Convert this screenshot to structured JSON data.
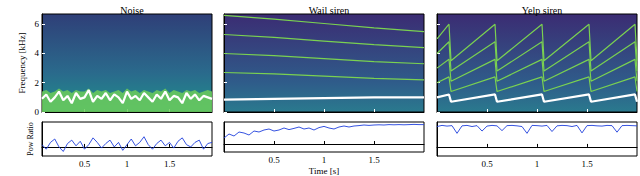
{
  "chart_data": [
    {
      "type": "line",
      "title": "Noise",
      "ylabel": "Frequency [kHz]",
      "tick_labels": "y",
      "grid": false,
      "xlim": [
        0,
        2
      ],
      "xticks": [
        0.5,
        1,
        1.5
      ],
      "ylim": [
        0,
        6.7
      ],
      "yticks": [
        0,
        2,
        4,
        6
      ],
      "x": [
        0,
        0.05,
        0.1,
        0.15,
        0.2,
        0.25,
        0.3,
        0.35,
        0.4,
        0.45,
        0.5,
        0.55,
        0.6,
        0.65,
        0.7,
        0.75,
        0.8,
        0.85,
        0.9,
        0.95,
        1,
        1.05,
        1.1,
        1.15,
        1.2,
        1.25,
        1.3,
        1.35,
        1.4,
        1.45,
        1.5,
        1.55,
        1.6,
        1.65,
        1.7,
        1.75,
        1.8,
        1.85,
        1.9,
        1.95,
        2
      ],
      "series": [
        {
          "type": "area",
          "color": "#6ccd5a",
          "values": [
            1.4,
            1.5,
            1.3,
            1.4,
            1.6,
            1.4,
            1.5,
            1.3,
            1.5,
            1.4,
            1.4,
            1.6,
            1.3,
            1.5,
            1.4,
            1.5,
            1.3,
            1.4,
            1.5,
            1.3,
            1.6,
            1.4,
            1.5,
            1.3,
            1.5,
            1.4,
            1.3,
            1.5,
            1.4,
            1.6,
            1.3,
            1.5,
            1.4,
            1.3,
            1.5,
            1.4,
            1.5,
            1.3,
            1.4,
            1.5,
            1.4
          ]
        },
        {
          "type": "line",
          "color": "#ffffff",
          "values": [
            0.9,
            1.2,
            0.7,
            1.0,
            1.4,
            0.8,
            1.1,
            0.6,
            1.3,
            0.9,
            1.0,
            1.5,
            0.7,
            1.1,
            0.9,
            1.3,
            0.8,
            1.2,
            1.0,
            0.6,
            1.4,
            0.9,
            1.1,
            0.8,
            1.3,
            1.0,
            0.7,
            1.2,
            0.9,
            1.4,
            0.8,
            1.1,
            1.0,
            0.6,
            1.3,
            0.9,
            1.2,
            0.8,
            1.1,
            1.0,
            0.9
          ]
        }
      ]
    },
    {
      "type": "line",
      "title": "Wail siren",
      "tick_labels": false,
      "grid": false,
      "xlim": [
        0,
        2
      ],
      "xticks": [
        0.5,
        1,
        1.5
      ],
      "ylim": [
        0,
        6.7
      ],
      "yticks": [
        0,
        2,
        4,
        6
      ],
      "x": [
        0,
        0.5,
        1,
        1.5,
        2
      ],
      "series": [
        {
          "color": "#7ad151",
          "values": [
            2.7,
            2.6,
            2.45,
            2.3,
            2.2
          ]
        },
        {
          "color": "#7ad151",
          "values": [
            4.0,
            3.85,
            3.65,
            3.45,
            3.3
          ]
        },
        {
          "color": "#7ad151",
          "values": [
            5.3,
            5.1,
            4.85,
            4.6,
            4.4
          ]
        },
        {
          "color": "#7ad151",
          "values": [
            6.6,
            6.35,
            6.05,
            5.75,
            5.5
          ]
        },
        {
          "color": "#ffffff",
          "values": [
            0.85,
            0.9,
            0.95,
            1.0,
            1.0
          ]
        }
      ]
    },
    {
      "type": "line",
      "title": "Yelp siren",
      "tick_labels": false,
      "grid": false,
      "xlim": [
        0,
        2
      ],
      "xticks": [
        0.5,
        1,
        1.5
      ],
      "ylim": [
        0,
        6.7
      ],
      "yticks": [
        0,
        2,
        4,
        6
      ],
      "x": [
        0,
        0.12,
        0.14,
        0.58,
        0.6,
        1.05,
        1.07,
        1.52,
        1.54,
        1.98,
        2
      ],
      "series": [
        {
          "color": "#7ad151",
          "values": [
            2.0,
            2.4,
            1.4,
            2.4,
            1.4,
            2.4,
            1.4,
            2.4,
            1.4,
            2.4,
            1.4
          ]
        },
        {
          "color": "#7ad151",
          "values": [
            3.0,
            3.6,
            2.1,
            3.6,
            2.1,
            3.6,
            2.1,
            3.6,
            2.1,
            3.6,
            2.1
          ]
        },
        {
          "color": "#7ad151",
          "values": [
            4.0,
            4.8,
            2.8,
            4.8,
            2.8,
            4.8,
            2.8,
            4.8,
            2.8,
            4.8,
            2.8
          ]
        },
        {
          "color": "#7ad151",
          "values": [
            5.0,
            6.0,
            3.5,
            6.0,
            3.5,
            6.0,
            3.5,
            6.0,
            3.5,
            6.0,
            3.5
          ]
        },
        {
          "color": "#ffffff",
          "values": [
            1.0,
            1.2,
            0.7,
            1.2,
            0.7,
            1.2,
            0.7,
            1.2,
            0.7,
            1.2,
            0.7
          ]
        }
      ]
    },
    {
      "type": "line",
      "ylabel": "Pow Ratio",
      "tick_labels": "x",
      "grid": false,
      "xlim": [
        0,
        2
      ],
      "xticks": [
        0.5,
        1,
        1.5
      ],
      "ylim": [
        -0.4,
        1.1
      ],
      "x": [
        0,
        0.05,
        0.1,
        0.15,
        0.2,
        0.25,
        0.3,
        0.35,
        0.4,
        0.45,
        0.5,
        0.55,
        0.6,
        0.65,
        0.7,
        0.75,
        0.8,
        0.85,
        0.9,
        0.95,
        1,
        1.05,
        1.1,
        1.15,
        1.2,
        1.25,
        1.3,
        1.35,
        1.4,
        1.45,
        1.5,
        1.55,
        1.6,
        1.65,
        1.7,
        1.75,
        1.8,
        1.85,
        1.9,
        1.95,
        2
      ],
      "series": [
        {
          "color": "#1f3fdc",
          "values": [
            0.1,
            -0.1,
            0.2,
            0.35,
            0.0,
            -0.2,
            0.15,
            0.3,
            0.05,
            0.25,
            -0.1,
            0.1,
            0.4,
            0.2,
            -0.05,
            0.15,
            0.3,
            0.0,
            0.2,
            -0.15,
            0.1,
            0.35,
            0.05,
            0.2,
            0.45,
            0.1,
            -0.1,
            0.15,
            0.3,
            0.05,
            0.2,
            -0.05,
            0.25,
            0.4,
            0.1,
            0.0,
            0.2,
            0.3,
            -0.1,
            0.15,
            0.2
          ]
        }
      ]
    },
    {
      "type": "line",
      "xlabel": "Time [s]",
      "tick_labels": "x",
      "grid": false,
      "xlim": [
        0,
        2
      ],
      "xticks": [
        0.5,
        1,
        1.5
      ],
      "ylim": [
        -0.4,
        1.1
      ],
      "x": [
        0,
        0.05,
        0.1,
        0.15,
        0.2,
        0.25,
        0.3,
        0.35,
        0.4,
        0.45,
        0.5,
        0.55,
        0.6,
        0.65,
        0.7,
        0.75,
        0.8,
        0.85,
        0.9,
        0.95,
        1,
        1.05,
        1.1,
        1.15,
        1.2,
        1.25,
        1.3,
        1.35,
        1.4,
        1.45,
        1.5,
        1.55,
        1.6,
        1.65,
        1.7,
        1.75,
        1.8,
        1.85,
        1.9,
        1.95,
        2
      ],
      "series": [
        {
          "color": "#1f3fdc",
          "values": [
            0.3,
            0.5,
            0.4,
            0.6,
            0.55,
            0.45,
            0.65,
            0.6,
            0.7,
            0.75,
            0.65,
            0.7,
            0.8,
            0.72,
            0.78,
            0.85,
            0.75,
            0.8,
            0.7,
            0.82,
            0.88,
            0.8,
            0.75,
            0.85,
            0.9,
            0.85,
            0.9,
            0.92,
            0.95,
            0.93,
            0.95,
            0.96,
            0.95,
            0.97,
            0.96,
            0.97,
            0.96,
            0.97,
            0.98,
            0.97,
            0.97
          ]
        }
      ]
    },
    {
      "type": "line",
      "tick_labels": "x",
      "grid": false,
      "xlim": [
        0,
        2
      ],
      "xticks": [
        0.5,
        1,
        1.5
      ],
      "ylim": [
        -0.4,
        1.1
      ],
      "x": [
        0,
        0.05,
        0.1,
        0.15,
        0.2,
        0.25,
        0.3,
        0.35,
        0.4,
        0.45,
        0.5,
        0.55,
        0.6,
        0.65,
        0.7,
        0.75,
        0.8,
        0.85,
        0.9,
        0.95,
        1,
        1.05,
        1.1,
        1.15,
        1.2,
        1.25,
        1.3,
        1.35,
        1.4,
        1.45,
        1.5,
        1.55,
        1.6,
        1.65,
        1.7,
        1.75,
        1.8,
        1.85,
        1.9,
        1.95,
        2
      ],
      "series": [
        {
          "color": "#1f3fdc",
          "values": [
            0.9,
            0.95,
            0.92,
            0.94,
            0.6,
            0.93,
            0.95,
            0.9,
            0.94,
            0.7,
            0.92,
            0.95,
            0.93,
            0.72,
            0.94,
            0.95,
            0.93,
            0.9,
            0.6,
            0.95,
            0.94,
            0.92,
            0.95,
            0.68,
            0.93,
            0.95,
            0.94,
            0.9,
            0.95,
            0.62,
            0.94,
            0.95,
            0.93,
            0.92,
            0.95,
            0.94,
            0.65,
            0.94,
            0.95,
            0.94,
            0.93
          ]
        }
      ]
    }
  ]
}
